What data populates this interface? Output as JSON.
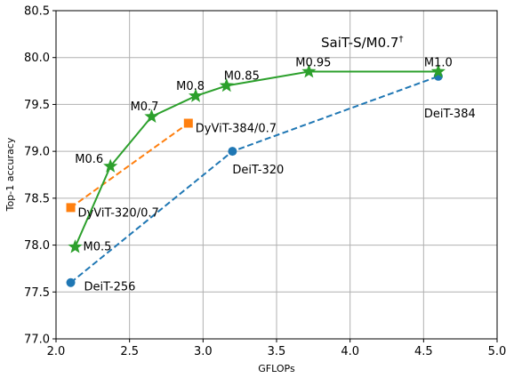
{
  "chart_data": {
    "type": "line",
    "title": "",
    "xlabel": "GFLOPs",
    "ylabel": "Top-1 accuracy",
    "xlim": [
      2.0,
      5.0
    ],
    "ylim": [
      77.0,
      80.5
    ],
    "xticks": [
      2.0,
      2.5,
      3.0,
      3.5,
      4.0,
      4.5,
      5.0
    ],
    "yticks": [
      77.0,
      77.5,
      78.0,
      78.5,
      79.0,
      79.5,
      80.0,
      80.5
    ],
    "xtick_labels": [
      "2.0",
      "2.5",
      "3.0",
      "3.5",
      "4.0",
      "4.5",
      "5.0"
    ],
    "ytick_labels": [
      "77.0",
      "77.5",
      "78.0",
      "78.5",
      "79.0",
      "79.5",
      "80.0",
      "80.5"
    ],
    "grid": true,
    "annotation_main": "SaiT-S/M0.7",
    "annotation_main_sup": "†",
    "series": [
      {
        "key": "deit",
        "color": "#1f77b4",
        "line_style": "dashed",
        "marker": "circle",
        "points": [
          {
            "x": 2.1,
            "y": 77.6,
            "label": "DeiT-256"
          },
          {
            "x": 3.2,
            "y": 79.0,
            "label": "DeiT-320"
          },
          {
            "x": 4.6,
            "y": 79.8,
            "label": "DeiT-384"
          }
        ]
      },
      {
        "key": "dyvit",
        "color": "#ff7f0e",
        "line_style": "dashed",
        "marker": "square",
        "points": [
          {
            "x": 2.1,
            "y": 78.4,
            "label": "DyViT-320/0.7"
          },
          {
            "x": 2.9,
            "y": 79.3,
            "label": "DyViT-384/0.7"
          }
        ]
      },
      {
        "key": "sait",
        "color": "#2ca02c",
        "line_style": "solid",
        "marker": "star",
        "points": [
          {
            "x": 2.13,
            "y": 77.98,
            "label": "M0.5"
          },
          {
            "x": 2.37,
            "y": 78.84,
            "label": "M0.6"
          },
          {
            "x": 2.65,
            "y": 79.37,
            "label": "M0.7"
          },
          {
            "x": 2.95,
            "y": 79.59,
            "label": "M0.8"
          },
          {
            "x": 3.16,
            "y": 79.7,
            "label": "M0.85"
          },
          {
            "x": 3.72,
            "y": 79.85,
            "label": "M0.95"
          },
          {
            "x": 4.6,
            "y": 79.85,
            "label": "M1.0"
          }
        ]
      }
    ]
  }
}
